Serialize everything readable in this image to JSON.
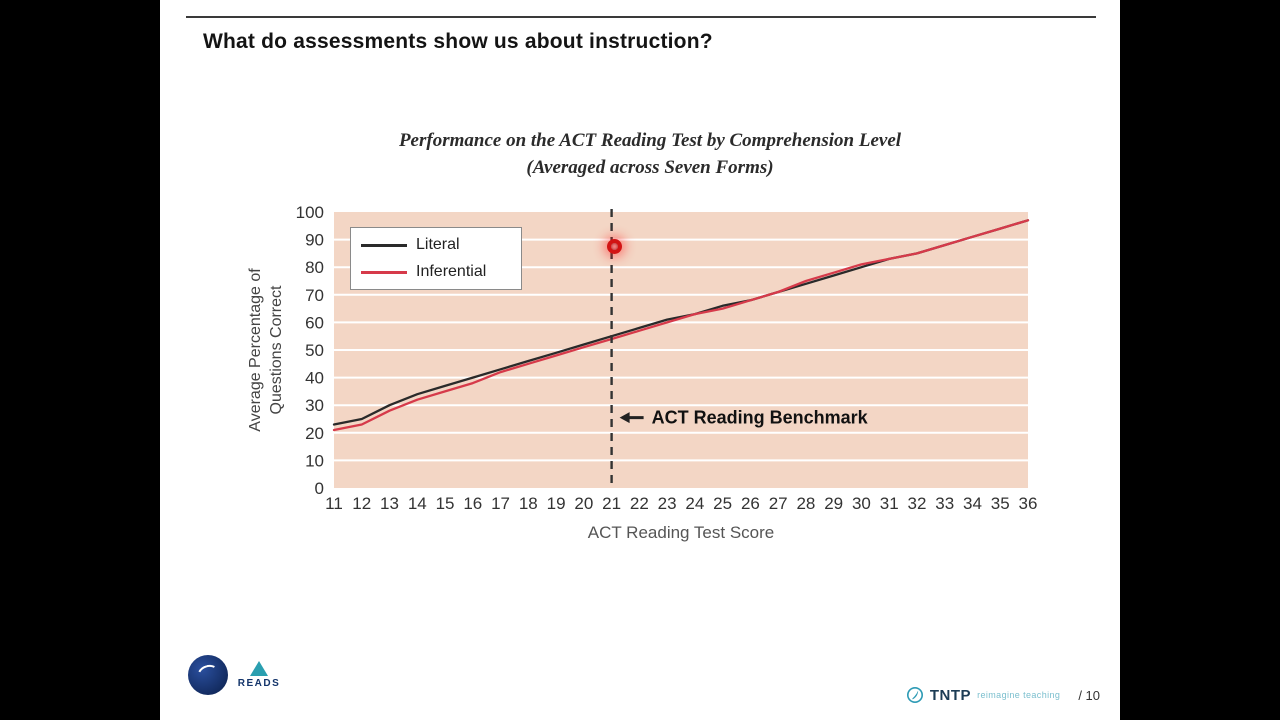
{
  "slide": {
    "title": "What do assessments show us about instruction?",
    "chart_title_line1": "Performance on the ACT Reading Test by Comprehension Level",
    "chart_title_line2": "(Averaged across Seven Forms)"
  },
  "chart_data": {
    "type": "line",
    "x": [
      11,
      12,
      13,
      14,
      15,
      16,
      17,
      18,
      19,
      20,
      21,
      22,
      23,
      24,
      25,
      26,
      27,
      28,
      29,
      30,
      31,
      32,
      33,
      34,
      35,
      36
    ],
    "series": [
      {
        "name": "Literal",
        "color": "#2a2a2a",
        "values": [
          23,
          25,
          30,
          34,
          37,
          40,
          43,
          46,
          49,
          52,
          55,
          58,
          61,
          63,
          66,
          68,
          71,
          74,
          77,
          80,
          83,
          85,
          88,
          91,
          94,
          97
        ]
      },
      {
        "name": "Inferential",
        "color": "#d63a4a",
        "values": [
          21,
          23,
          28,
          32,
          35,
          38,
          42,
          45,
          48,
          51,
          54,
          57,
          60,
          63,
          65,
          68,
          71,
          75,
          78,
          81,
          83,
          85,
          88,
          91,
          94,
          97
        ]
      }
    ],
    "title": "Performance on the ACT Reading Test by Comprehension Level (Averaged across Seven Forms)",
    "xlabel": "ACT Reading Test Score",
    "ylabel_line1": "Average Percentage of",
    "ylabel_line2": "Questions Correct",
    "xlim": [
      11,
      36
    ],
    "ylim": [
      0,
      100
    ],
    "ytick_step": 10,
    "grid": true,
    "legend_position": "top-left",
    "plot_bg": "#f3d6c5",
    "grid_color": "#ffffff",
    "benchmark": {
      "x": 21,
      "label": "ACT Reading Benchmark",
      "label_y": 25.5
    }
  },
  "footer": {
    "reads_label": "READS",
    "tntp_label": "TNTP",
    "tntp_tagline": "reimagine teaching",
    "page_indicator": "/ 10"
  }
}
